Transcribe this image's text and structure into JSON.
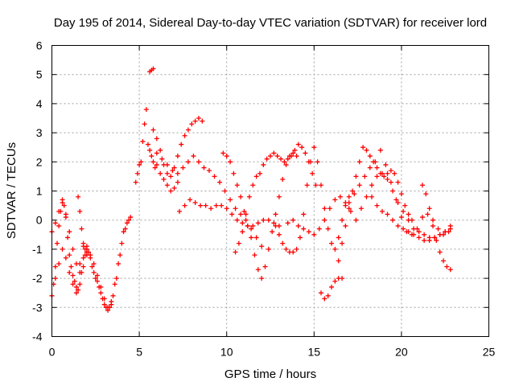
{
  "chart_data": {
    "type": "scatter",
    "title": "Day 195 of 2014, Sidereal Day-to-day VTEC variation (SDTVAR) for receiver lord",
    "xlabel": "GPS time / hours",
    "ylabel": "SDTVAR / TECUs",
    "xlim": [
      0,
      25
    ],
    "ylim": [
      -4,
      6
    ],
    "xticks": [
      "0",
      "5",
      "10",
      "15",
      "20",
      "25"
    ],
    "yticks": [
      "-4",
      "-3",
      "-2",
      "-1",
      "0",
      "1",
      "2",
      "3",
      "4",
      "5",
      "6"
    ],
    "grid": true,
    "marker": "plus",
    "color": "#ff0000",
    "series": [
      {
        "name": "trace-a",
        "x": [
          0.0,
          0.1,
          0.2,
          0.3,
          0.4,
          0.5,
          0.6,
          0.7,
          0.8,
          0.9,
          1.0,
          1.1,
          1.2,
          1.3,
          1.4,
          1.5,
          1.6,
          1.7,
          1.8,
          1.9,
          2.0
        ],
        "y": [
          -2.6,
          -2.2,
          -1.6,
          -0.8,
          -0.2,
          0.3,
          0.6,
          0.5,
          0.1,
          -0.6,
          -1.2,
          -1.6,
          -1.9,
          -2.1,
          -2.3,
          -2.4,
          -2.2,
          -1.8,
          -1.3,
          -1.0,
          -1.2
        ]
      },
      {
        "name": "trace-b",
        "x": [
          0.0,
          0.2,
          0.4,
          0.6,
          0.8,
          1.0,
          1.2,
          1.4,
          1.6,
          1.8,
          2.0
        ],
        "y": [
          -0.4,
          -0.1,
          0.3,
          0.7,
          0.2,
          -0.4,
          -1.0,
          -1.5,
          -1.8,
          -1.6,
          -1.1
        ]
      },
      {
        "name": "trace-c",
        "x": [
          0.2,
          0.4,
          0.6,
          0.8,
          1.0,
          1.2,
          1.4,
          1.6,
          1.8,
          2.0,
          2.2,
          2.4,
          2.6,
          2.8,
          3.0,
          3.2,
          3.4,
          3.6,
          3.8,
          4.0,
          4.2,
          4.4
        ],
        "y": [
          -2.0,
          -1.5,
          -1.0,
          -1.3,
          -1.8,
          -2.2,
          -2.5,
          -1.5,
          -0.8,
          -0.9,
          -1.2,
          -1.5,
          -1.9,
          -2.3,
          -2.7,
          -3.0,
          -2.8,
          -2.2,
          -1.5,
          -0.8,
          -0.3,
          0.0
        ]
      },
      {
        "name": "trace-d",
        "x": [
          1.5,
          1.6,
          1.7,
          1.8,
          1.9,
          2.0,
          2.1,
          2.2,
          2.3,
          2.4,
          2.5,
          2.6,
          2.7,
          2.8,
          2.9,
          3.0,
          3.1,
          3.2,
          3.3,
          3.4
        ],
        "y": [
          0.8,
          0.3,
          -0.3,
          -0.9,
          -1.2,
          -1.0,
          -1.1,
          -1.3,
          -1.6,
          -1.8,
          -2.0,
          -2.1,
          -2.3,
          -2.5,
          -2.7,
          -2.9,
          -3.0,
          -3.1,
          -3.0,
          -2.9
        ]
      },
      {
        "name": "trace-e",
        "x": [
          3.5,
          3.7,
          3.9,
          4.1,
          4.3,
          4.5
        ],
        "y": [
          -2.6,
          -2.0,
          -1.2,
          -0.4,
          -0.1,
          0.1
        ]
      },
      {
        "name": "trace-f",
        "x": [
          4.8,
          4.9,
          5.0,
          5.1,
          5.2,
          5.3,
          5.4,
          5.5,
          5.6,
          5.7,
          5.8,
          5.9,
          6.0,
          6.2,
          6.4,
          6.6,
          6.8,
          7.0,
          7.2
        ],
        "y": [
          1.3,
          1.6,
          1.9,
          2.0,
          2.7,
          3.3,
          3.8,
          2.6,
          2.4,
          2.2,
          2.0,
          1.8,
          1.9,
          1.6,
          1.4,
          1.2,
          1.0,
          1.1,
          1.3
        ]
      },
      {
        "name": "trace-g",
        "x": [
          5.6,
          5.7,
          5.8
        ],
        "y": [
          5.1,
          5.15,
          5.2
        ]
      },
      {
        "name": "trace-h",
        "x": [
          5.8,
          6.0,
          6.2,
          6.4,
          6.6,
          6.8,
          7.0,
          7.2,
          7.4,
          7.6,
          7.8,
          8.0,
          8.2,
          8.4,
          8.6
        ],
        "y": [
          3.1,
          2.8,
          2.4,
          1.9,
          1.6,
          1.5,
          1.8,
          2.2,
          2.6,
          2.9,
          3.1,
          3.3,
          3.4,
          3.5,
          3.4
        ]
      },
      {
        "name": "trace-i",
        "x": [
          6.0,
          6.3,
          6.6,
          6.9,
          7.2,
          7.5,
          7.8,
          8.1,
          8.4,
          8.7,
          9.0,
          9.3,
          9.6,
          9.9,
          10.2,
          10.5,
          10.8,
          11.1,
          11.4,
          11.7,
          12.0
        ],
        "y": [
          2.3,
          2.1,
          1.9,
          1.7,
          1.6,
          1.8,
          2.0,
          2.2,
          2.0,
          1.8,
          1.7,
          1.5,
          1.3,
          1.0,
          0.7,
          0.4,
          0.2,
          0.0,
          -0.3,
          -0.6,
          -0.9
        ]
      },
      {
        "name": "trace-j",
        "x": [
          7.3,
          7.6,
          7.9,
          8.2,
          8.5,
          8.8,
          9.1,
          9.4,
          9.7,
          10.0,
          10.3,
          10.6,
          10.9,
          11.2,
          11.5,
          11.8,
          12.1,
          12.4,
          12.7,
          13.0
        ],
        "y": [
          0.3,
          0.5,
          0.7,
          0.6,
          0.5,
          0.5,
          0.4,
          0.5,
          0.5,
          0.4,
          0.2,
          0.0,
          -0.1,
          -0.2,
          -0.2,
          -0.1,
          0.0,
          0.0,
          -0.1,
          -0.2
        ]
      },
      {
        "name": "trace-k",
        "x": [
          9.8,
          10.0,
          10.2,
          10.4,
          10.6,
          10.8,
          11.0,
          11.2,
          11.4,
          11.6,
          11.8,
          12.0,
          12.2,
          12.4,
          12.6,
          12.8,
          13.0,
          13.2,
          13.4,
          13.6,
          13.8,
          14.0
        ],
        "y": [
          2.3,
          2.2,
          2.0,
          1.6,
          1.2,
          0.8,
          0.3,
          -0.2,
          -0.6,
          -1.2,
          -1.7,
          -2.0,
          -1.6,
          -1.0,
          -0.4,
          0.2,
          0.8,
          1.4,
          1.9,
          2.2,
          2.3,
          2.2
        ]
      },
      {
        "name": "trace-l",
        "x": [
          10.5,
          10.7,
          10.9,
          11.1,
          11.3,
          11.5,
          11.7,
          11.9,
          12.1,
          12.3,
          12.5,
          12.7,
          12.9,
          13.1,
          13.3,
          13.5,
          13.7,
          13.9,
          14.1,
          14.3,
          14.5,
          14.7,
          14.9,
          15.1
        ],
        "y": [
          -1.1,
          -0.8,
          -0.4,
          0.2,
          0.8,
          1.2,
          1.5,
          1.6,
          1.9,
          2.1,
          2.2,
          2.3,
          2.2,
          2.1,
          2.0,
          2.1,
          2.2,
          2.4,
          2.6,
          2.5,
          2.3,
          2.0,
          1.6,
          1.2
        ]
      },
      {
        "name": "trace-m",
        "x": [
          12.8,
          13.0,
          13.2,
          13.4,
          13.6,
          13.8,
          14.0,
          14.2,
          14.4,
          14.6,
          14.8,
          15.0,
          15.2,
          15.4,
          15.6,
          15.8,
          16.0,
          16.2,
          16.4,
          16.6,
          16.8,
          17.0
        ],
        "y": [
          -0.2,
          -0.5,
          -0.8,
          -1.0,
          -1.1,
          -1.1,
          -1.0,
          -0.6,
          0.2,
          1.2,
          2.0,
          2.5,
          2.0,
          1.2,
          0.4,
          -0.3,
          -0.8,
          -1.0,
          -0.6,
          0.0,
          0.5,
          0.8
        ]
      },
      {
        "name": "trace-n",
        "x": [
          13.5,
          13.8,
          14.1,
          14.4,
          14.7,
          15.0,
          15.3,
          15.6,
          15.9,
          16.2,
          16.5,
          16.8,
          17.1,
          17.4,
          17.7,
          18.0,
          18.3,
          18.6,
          18.9,
          19.2,
          19.5,
          19.8,
          20.1,
          20.4,
          20.7,
          21.0,
          21.3,
          21.6,
          21.9,
          22.2,
          22.5,
          22.8
        ],
        "y": [
          -0.1,
          0.0,
          -0.2,
          -0.3,
          -0.4,
          -0.5,
          -0.3,
          0.0,
          0.4,
          0.7,
          0.8,
          0.6,
          0.3,
          0.0,
          0.4,
          0.8,
          1.2,
          1.5,
          1.6,
          1.4,
          1.0,
          0.6,
          0.3,
          0.0,
          -0.3,
          -0.4,
          -0.5,
          -0.6,
          -0.6,
          -0.5,
          -0.4,
          -0.3
        ]
      },
      {
        "name": "trace-o",
        "x": [
          15.4,
          15.6,
          15.8,
          16.0,
          16.2,
          16.4,
          16.6
        ],
        "y": [
          -2.5,
          -2.7,
          -2.6,
          -2.3,
          -2.1,
          -2.0,
          -2.0
        ]
      },
      {
        "name": "trace-p",
        "x": [
          16.4,
          16.6,
          16.8,
          17.0,
          17.2,
          17.4,
          17.6,
          17.8,
          18.0,
          18.2,
          18.4,
          18.6,
          18.8,
          19.0,
          19.2,
          19.4,
          19.6,
          19.8,
          20.0,
          20.2,
          20.4,
          20.6
        ],
        "y": [
          -1.4,
          -0.8,
          -0.2,
          0.4,
          1.0,
          1.5,
          2.0,
          2.5,
          2.4,
          2.2,
          2.0,
          1.8,
          1.6,
          1.5,
          1.6,
          1.7,
          1.6,
          1.3,
          0.9,
          0.5,
          0.2,
          0.0
        ]
      },
      {
        "name": "trace-q",
        "x": [
          17.0,
          17.3,
          17.6,
          17.9,
          18.2,
          18.5,
          18.8,
          19.1,
          19.4,
          19.7,
          20.0,
          20.3,
          20.6,
          20.9,
          21.2,
          21.5,
          21.8,
          22.1,
          22.4,
          22.7
        ],
        "y": [
          0.6,
          0.9,
          1.2,
          1.5,
          1.8,
          2.0,
          2.4,
          1.9,
          1.3,
          0.7,
          0.1,
          -0.4,
          -0.5,
          -0.3,
          0.1,
          0.2,
          0.0,
          -0.3,
          -0.5,
          -0.4
        ]
      },
      {
        "name": "trace-r",
        "x": [
          21.2,
          21.4,
          21.6,
          21.8,
          22.0,
          22.2,
          22.4,
          22.6,
          22.8
        ],
        "y": [
          1.2,
          0.9,
          0.4,
          -0.2,
          -0.7,
          -1.1,
          -1.4,
          -1.6,
          -1.7
        ]
      },
      {
        "name": "trace-s",
        "x": [
          18.3,
          18.6,
          18.9,
          19.2,
          19.5,
          19.8,
          20.1,
          20.4,
          20.7,
          21.0,
          21.3,
          21.6,
          21.9,
          22.2,
          22.5,
          22.8
        ],
        "y": [
          0.8,
          0.5,
          0.3,
          0.2,
          0.0,
          -0.2,
          -0.3,
          -0.4,
          -0.5,
          -0.6,
          -0.7,
          -0.7,
          -0.6,
          -0.5,
          -0.4,
          -0.2
        ]
      }
    ]
  }
}
